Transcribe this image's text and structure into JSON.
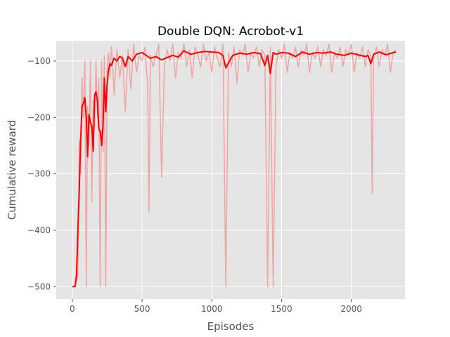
{
  "chart_data": {
    "type": "line",
    "title": "Double DQN: Acrobot-v1",
    "xlabel": "Episodes",
    "ylabel": "Cumulative reward",
    "xlim": [
      -115,
      2385
    ],
    "ylim": [
      -522,
      -64
    ],
    "xticks": [
      0,
      500,
      1000,
      1500,
      2000
    ],
    "yticks": [
      -500,
      -400,
      -300,
      -200,
      -100
    ],
    "xtick_labels": [
      "0",
      "500",
      "1000",
      "1500",
      "2000"
    ],
    "ytick_labels": [
      "−500",
      "−400",
      "−300",
      "−200",
      "−100"
    ],
    "grid": true,
    "background": "#e5e5e5",
    "series": [
      {
        "role": "raw",
        "color": "#f09a9a",
        "opacity": 0.85,
        "x": [
          0,
          20,
          40,
          50,
          60,
          70,
          80,
          90,
          100,
          110,
          120,
          130,
          140,
          150,
          160,
          170,
          180,
          190,
          200,
          210,
          220,
          230,
          240,
          250,
          260,
          270,
          280,
          290,
          300,
          320,
          340,
          360,
          380,
          400,
          420,
          440,
          460,
          480,
          500,
          520,
          540,
          550,
          560,
          580,
          600,
          620,
          640,
          660,
          680,
          700,
          720,
          740,
          760,
          780,
          800,
          820,
          840,
          860,
          880,
          900,
          920,
          940,
          960,
          980,
          1000,
          1020,
          1040,
          1060,
          1080,
          1100,
          1120,
          1140,
          1160,
          1180,
          1200,
          1220,
          1240,
          1260,
          1280,
          1300,
          1320,
          1340,
          1360,
          1380,
          1400,
          1420,
          1440,
          1460,
          1480,
          1500,
          1520,
          1540,
          1560,
          1580,
          1600,
          1620,
          1640,
          1660,
          1680,
          1700,
          1720,
          1740,
          1760,
          1780,
          1800,
          1820,
          1840,
          1860,
          1880,
          1900,
          1920,
          1940,
          1960,
          1980,
          2000,
          2020,
          2040,
          2060,
          2080,
          2100,
          2120,
          2140,
          2150,
          2160,
          2180,
          2200,
          2220,
          2240,
          2260,
          2280,
          2300,
          2320
        ],
        "y": [
          -500,
          -500,
          -480,
          -240,
          -300,
          -130,
          -200,
          -100,
          -500,
          -180,
          -250,
          -100,
          -350,
          -170,
          -220,
          -100,
          -200,
          -130,
          -500,
          -100,
          -260,
          -90,
          -500,
          -110,
          -85,
          -130,
          -75,
          -110,
          -160,
          -80,
          -130,
          -90,
          -190,
          -80,
          -150,
          -70,
          -120,
          -90,
          -100,
          -75,
          -140,
          -368,
          -90,
          -110,
          -90,
          -70,
          -306,
          -110,
          -80,
          -100,
          -70,
          -130,
          -85,
          -95,
          -70,
          -110,
          -80,
          -130,
          -75,
          -90,
          -110,
          -70,
          -100,
          -85,
          -120,
          -75,
          -95,
          -110,
          -70,
          -500,
          -85,
          -110,
          -75,
          -140,
          -80,
          -90,
          -70,
          -120,
          -85,
          -95,
          -75,
          -110,
          -80,
          -90,
          -500,
          -75,
          -500,
          -110,
          -80,
          -95,
          -70,
          -120,
          -85,
          -95,
          -75,
          -110,
          -80,
          -90,
          -70,
          -120,
          -85,
          -95,
          -75,
          -110,
          -80,
          -90,
          -70,
          -120,
          -85,
          -95,
          -75,
          -110,
          -80,
          -90,
          -70,
          -120,
          -85,
          -95,
          -75,
          -110,
          -80,
          -90,
          -335,
          -95,
          -75,
          -110,
          -80,
          -90,
          -70,
          -120,
          -85,
          -80
        ]
      },
      {
        "role": "smoothed",
        "color": "#ff0000",
        "opacity": 1,
        "x": [
          0,
          20,
          30,
          40,
          50,
          60,
          70,
          80,
          90,
          100,
          110,
          120,
          130,
          140,
          150,
          160,
          170,
          180,
          190,
          200,
          210,
          220,
          230,
          240,
          250,
          260,
          270,
          280,
          300,
          320,
          340,
          360,
          380,
          400,
          430,
          460,
          500,
          530,
          560,
          600,
          640,
          680,
          720,
          760,
          800,
          850,
          900,
          950,
          1000,
          1050,
          1080,
          1100,
          1150,
          1200,
          1250,
          1300,
          1350,
          1380,
          1400,
          1420,
          1440,
          1460,
          1500,
          1550,
          1600,
          1650,
          1700,
          1750,
          1800,
          1850,
          1900,
          1950,
          2000,
          2050,
          2100,
          2120,
          2140,
          2160,
          2200,
          2250,
          2300,
          2320
        ],
        "y": [
          -500,
          -500,
          -480,
          -400,
          -330,
          -240,
          -180,
          -175,
          -165,
          -200,
          -270,
          -195,
          -210,
          -215,
          -260,
          -160,
          -155,
          -170,
          -220,
          -225,
          -250,
          -215,
          -130,
          -190,
          -140,
          -115,
          -105,
          -108,
          -95,
          -100,
          -92,
          -95,
          -110,
          -92,
          -100,
          -88,
          -85,
          -90,
          -95,
          -92,
          -98,
          -94,
          -90,
          -93,
          -82,
          -88,
          -85,
          -83,
          -84,
          -85,
          -90,
          -112,
          -90,
          -86,
          -88,
          -85,
          -87,
          -108,
          -90,
          -122,
          -85,
          -88,
          -85,
          -86,
          -92,
          -84,
          -88,
          -85,
          -86,
          -84,
          -88,
          -90,
          -86,
          -89,
          -92,
          -90,
          -105,
          -88,
          -84,
          -89,
          -85,
          -84
        ]
      }
    ]
  }
}
